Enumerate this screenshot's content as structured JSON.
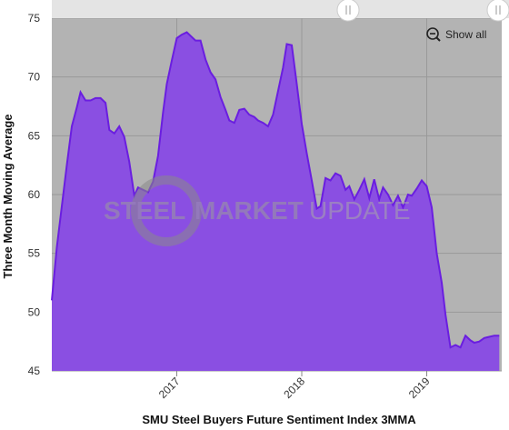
{
  "chart_data": {
    "type": "area",
    "title": "",
    "xlabel": "SMU Steel Buyers Future Sentiment Index 3MMA",
    "ylabel": "Three Month Moving Average",
    "ylim": [
      45,
      75
    ],
    "yticks": [
      45,
      50,
      55,
      60,
      65,
      70,
      75
    ],
    "xlim": [
      2016.0,
      2019.6
    ],
    "xticks": [
      {
        "label": "2017",
        "x": 2017.0
      },
      {
        "label": "2018",
        "x": 2018.0
      },
      {
        "label": "2019",
        "x": 2019.0
      }
    ],
    "grid": true,
    "legend": "none",
    "series": [
      {
        "x": [
          2016.0,
          2016.04,
          2016.08,
          2016.12,
          2016.16,
          2016.2,
          2016.23,
          2016.27,
          2016.31,
          2016.35,
          2016.39,
          2016.43,
          2016.46,
          2016.5,
          2016.54,
          2016.58,
          2016.62,
          2016.66,
          2016.69,
          2016.73,
          2016.77,
          2016.81,
          2016.85,
          2016.89,
          2016.92,
          2016.96,
          2017.0,
          2017.04,
          2017.08,
          2017.12,
          2017.15,
          2017.19,
          2017.23,
          2017.27,
          2017.31,
          2017.35,
          2017.39,
          2017.42,
          2017.46,
          2017.5,
          2017.54,
          2017.58,
          2017.62,
          2017.65,
          2017.69,
          2017.73,
          2017.77,
          2017.81,
          2017.85,
          2017.88,
          2017.92,
          2017.96,
          2018.0,
          2018.04,
          2018.08,
          2018.12,
          2018.15,
          2018.19,
          2018.23,
          2018.27,
          2018.31,
          2018.35,
          2018.38,
          2018.42,
          2018.46,
          2018.5,
          2018.54,
          2018.58,
          2018.62,
          2018.65,
          2018.69,
          2018.73,
          2018.77,
          2018.81,
          2018.85,
          2018.88,
          2018.92,
          2018.96,
          2019.0,
          2019.04,
          2019.08,
          2019.12,
          2019.15,
          2019.19,
          2019.23,
          2019.27,
          2019.31,
          2019.35,
          2019.38,
          2019.42,
          2019.46,
          2019.5,
          2019.54,
          2019.58
        ],
        "values": [
          51.0,
          55.5,
          59.0,
          62.5,
          65.8,
          67.4,
          68.7,
          68.0,
          68.0,
          68.2,
          68.2,
          67.8,
          65.5,
          65.2,
          65.8,
          64.9,
          62.8,
          59.9,
          60.6,
          60.4,
          60.2,
          61.1,
          63.3,
          67.0,
          69.4,
          71.4,
          73.3,
          73.6,
          73.8,
          73.4,
          73.1,
          73.1,
          71.5,
          70.4,
          69.8,
          68.3,
          67.2,
          66.3,
          66.1,
          67.2,
          67.3,
          66.8,
          66.6,
          66.3,
          66.1,
          65.8,
          66.8,
          68.8,
          70.8,
          72.8,
          72.7,
          69.4,
          66.0,
          63.5,
          61.2,
          58.8,
          59.0,
          61.4,
          61.2,
          61.8,
          61.6,
          60.4,
          60.7,
          59.6,
          60.4,
          61.3,
          59.7,
          61.3,
          59.6,
          60.6,
          60.0,
          59.1,
          59.9,
          58.9,
          60.0,
          59.9,
          60.5,
          61.2,
          60.7,
          58.9,
          55.0,
          52.5,
          49.8,
          47.0,
          47.2,
          47.0,
          48.0,
          47.6,
          47.4,
          47.5,
          47.8,
          47.9,
          48.0,
          48.0
        ]
      }
    ],
    "colors": {
      "plot_background": "#b3b3b3",
      "area_fill": "#8a4fe2",
      "area_line": "#6a1ee0",
      "grid": "#999999",
      "navigator": "#e4e4e4"
    }
  },
  "watermark": {
    "brand_part1": "STEEL",
    "brand_part2": "MARKET",
    "brand_part3": "UPDATE"
  },
  "controls": {
    "zoom_label": "Show all",
    "zoom_icon": "magnifier-minus-icon",
    "handle_icon": "grip-handle-icon"
  }
}
